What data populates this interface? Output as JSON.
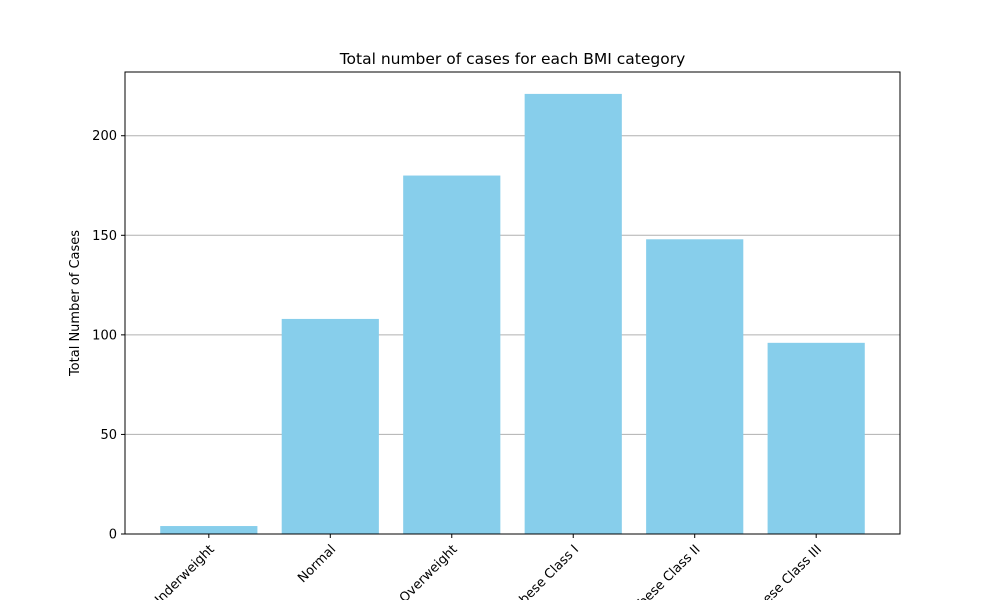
{
  "chart_data": {
    "type": "bar",
    "title": "Total number of cases for each BMI category",
    "xlabel": "",
    "ylabel": "Total Number of Cases",
    "categories": [
      "Underweight",
      "Normal",
      "Overweight",
      "Obese Class I",
      "Obese Class II",
      "Obese Class III"
    ],
    "values": [
      4,
      108,
      180,
      221,
      148,
      96
    ],
    "ylim": [
      0,
      232
    ],
    "yticks": [
      0,
      50,
      100,
      150,
      200
    ],
    "grid": "horizontal",
    "bar_color": "#87CEEB",
    "grid_color": "#b0b0b0"
  }
}
